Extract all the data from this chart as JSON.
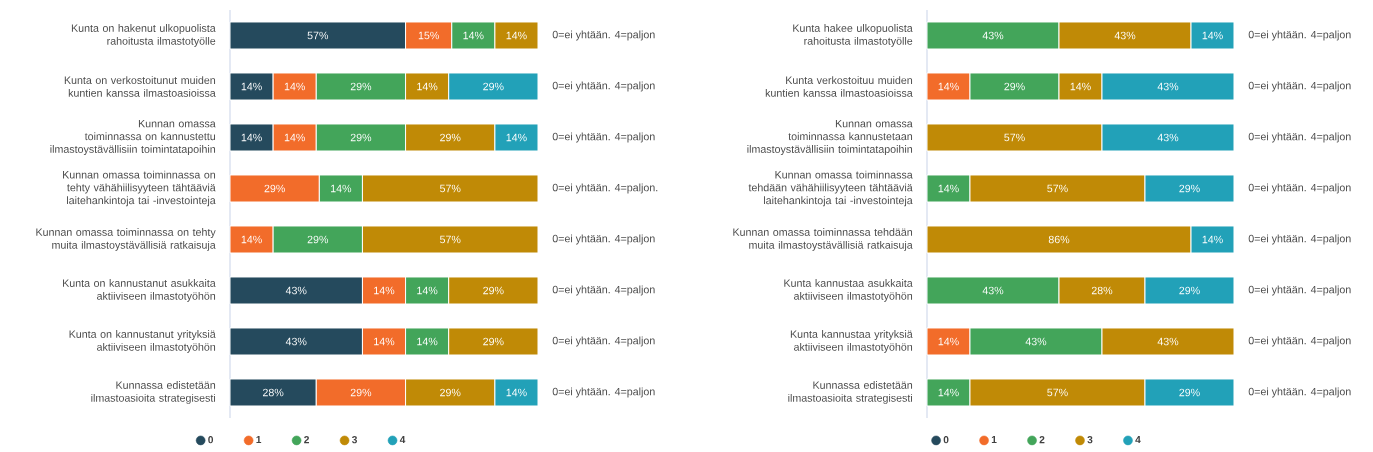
{
  "chart_data": [
    {
      "type": "bar",
      "orientation": "horizontal",
      "stacked": true,
      "legend": "bottom",
      "tick_labels": "y",
      "xlim": [
        0,
        100
      ],
      "categories": [
        "Kunta on hakenut ulkopuolista rahoitusta ilmastotyölle",
        "Kunta on verkostoitunut muiden kuntien kanssa ilmastoasioissa",
        "Kunnan omassa toiminnassa on kannustettu ilmastoystävällisiin toimintatapoihin",
        "Kunnan omassa toiminnassa on tehty vähähiilisyyteen tähtääviä laitehankintoja tai -investointeja",
        "Kunnan omassa toiminnassa on tehty muita ilmastoystävällisiä ratkaisuja",
        "Kunta on kannustanut asukkaita aktiiviseen ilmastotyöhön",
        "Kunta on kannustanut yrityksiä aktiiviseen ilmastotyöhön",
        "Kunnassa edistetään ilmastoasioita strategisesti"
      ],
      "series": [
        {
          "name": "0",
          "color": "#254a5d",
          "values": [
            57,
            14,
            14,
            null,
            null,
            43,
            43,
            28
          ],
          "value_labels": [
            "57%",
            "14%",
            "14%",
            null,
            null,
            "43%",
            "43%",
            "28%"
          ]
        },
        {
          "name": "1",
          "color": "#f26c2a",
          "values": [
            15,
            14,
            14,
            29,
            14,
            14,
            14,
            29
          ],
          "value_labels": [
            "15%",
            "14%",
            "14%",
            "29%",
            "14%",
            "14%",
            "14%",
            "29%"
          ]
        },
        {
          "name": "2",
          "color": "#43a55a",
          "values": [
            14,
            29,
            29,
            14,
            29,
            14,
            14,
            null
          ],
          "value_labels": [
            "14%",
            "29%",
            "29%",
            "14%",
            "29%",
            "14%",
            "14%",
            null
          ]
        },
        {
          "name": "3",
          "color": "#c08a06",
          "values": [
            14,
            14,
            29,
            57,
            57,
            29,
            29,
            29
          ],
          "value_labels": [
            "14%",
            "14%",
            "29%",
            "57%",
            "57%",
            "29%",
            "29%",
            "29%"
          ]
        },
        {
          "name": "4",
          "color": "#22a1b8",
          "values": [
            null,
            29,
            14,
            null,
            null,
            null,
            null,
            14
          ],
          "value_labels": [
            null,
            "29%",
            "14%",
            null,
            null,
            null,
            null,
            "14%"
          ]
        }
      ],
      "annotations": [
        "0=ei yhtään. 4=paljon",
        "0=ei yhtään. 4=paljon",
        "0=ei yhtään. 4=paljon",
        "0=ei yhtään. 4=paljon.",
        "0=ei yhtään. 4=paljon",
        "0=ei yhtään. 4=paljon",
        "0=ei yhtään. 4=paljon",
        "0=ei yhtään. 4=paljon"
      ]
    },
    {
      "type": "bar",
      "orientation": "horizontal",
      "stacked": true,
      "legend": "bottom",
      "tick_labels": "y",
      "xlim": [
        0,
        100
      ],
      "categories": [
        "Kunta hakee ulkopuolista rahoitusta ilmastotyölle",
        "Kunta verkostoituu muiden kuntien kanssa ilmastoasioissa",
        "Kunnan omassa toiminnassa kannustetaan ilmastoystävällisiin toimintatapoihin",
        "Kunnan omassa toiminnassa tehdään vähähiilisyyteen tähtääviä laitehankintoja tai -investointeja",
        "Kunnan omassa toiminnassa tehdään muita ilmastoystävällisiä ratkaisuja",
        "Kunta kannustaa asukkaita aktiiviseen ilmastotyöhön",
        "Kunta kannustaa yrityksiä aktiiviseen ilmastotyöhön",
        "Kunnassa edistetään ilmastoasioita strategisesti"
      ],
      "series": [
        {
          "name": "0",
          "color": "#254a5d",
          "values": [
            null,
            null,
            null,
            null,
            null,
            null,
            null,
            null
          ],
          "value_labels": [
            null,
            null,
            null,
            null,
            null,
            null,
            null,
            null
          ]
        },
        {
          "name": "1",
          "color": "#f26c2a",
          "values": [
            null,
            14,
            null,
            null,
            null,
            null,
            14,
            null
          ],
          "value_labels": [
            null,
            "14%",
            null,
            null,
            null,
            null,
            "14%",
            null
          ]
        },
        {
          "name": "2",
          "color": "#43a55a",
          "values": [
            43,
            29,
            null,
            14,
            null,
            43,
            43,
            14
          ],
          "value_labels": [
            "43%",
            "29%",
            null,
            "14%",
            null,
            "43%",
            "43%",
            "14%"
          ]
        },
        {
          "name": "3",
          "color": "#c08a06",
          "values": [
            43,
            14,
            57,
            57,
            86,
            28,
            43,
            57
          ],
          "value_labels": [
            "43%",
            "14%",
            "57%",
            "57%",
            "86%",
            "28%",
            "43%",
            "57%"
          ]
        },
        {
          "name": "4",
          "color": "#22a1b8",
          "values": [
            14,
            43,
            43,
            29,
            14,
            29,
            null,
            29
          ],
          "value_labels": [
            "14%",
            "43%",
            "43%",
            "29%",
            "14%",
            "29%",
            null,
            "29%"
          ]
        }
      ],
      "annotations": [
        "0=ei yhtään. 4=paljon",
        "0=ei yhtään. 4=paljon",
        "0=ei yhtään. 4=paljon",
        "0=ei yhtään. 4=paljon",
        "0=ei yhtään. 4=paljon",
        "0=ei yhtään. 4=paljon",
        "0=ei yhtään. 4=paljon",
        "0=ei yhtään. 4=paljon"
      ]
    }
  ]
}
